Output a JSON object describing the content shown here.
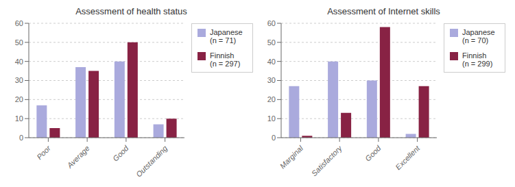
{
  "chart_data": [
    {
      "type": "bar",
      "title": "Assessment of health status",
      "categories": [
        "Poor",
        "Average",
        "Good",
        "Outstanding"
      ],
      "series": [
        {
          "name": "Japanese\n(n = 71)",
          "color": "#aaaadd",
          "values": [
            17,
            37,
            40,
            7
          ]
        },
        {
          "name": "Finnish\n(n = 297)",
          "color": "#882244",
          "values": [
            5,
            35,
            50,
            10
          ]
        }
      ],
      "ylim": [
        0,
        60
      ],
      "yticks": [
        0,
        10,
        20,
        30,
        40,
        50,
        60
      ],
      "grid": true,
      "legend": "right"
    },
    {
      "type": "bar",
      "title": "Assessment of Internet skills",
      "categories": [
        "Marginal",
        "Satisfactory",
        "Good",
        "Excellent"
      ],
      "series": [
        {
          "name": "Japanese\n(n = 70)",
          "color": "#aaaadd",
          "values": [
            27,
            40,
            30,
            2
          ]
        },
        {
          "name": "Finnish\n(n = 299)",
          "color": "#882244",
          "values": [
            1,
            13,
            58,
            27
          ]
        }
      ],
      "ylim": [
        0,
        60
      ],
      "yticks": [
        0,
        10,
        20,
        30,
        40,
        50,
        60
      ],
      "grid": true,
      "legend": "right"
    }
  ]
}
